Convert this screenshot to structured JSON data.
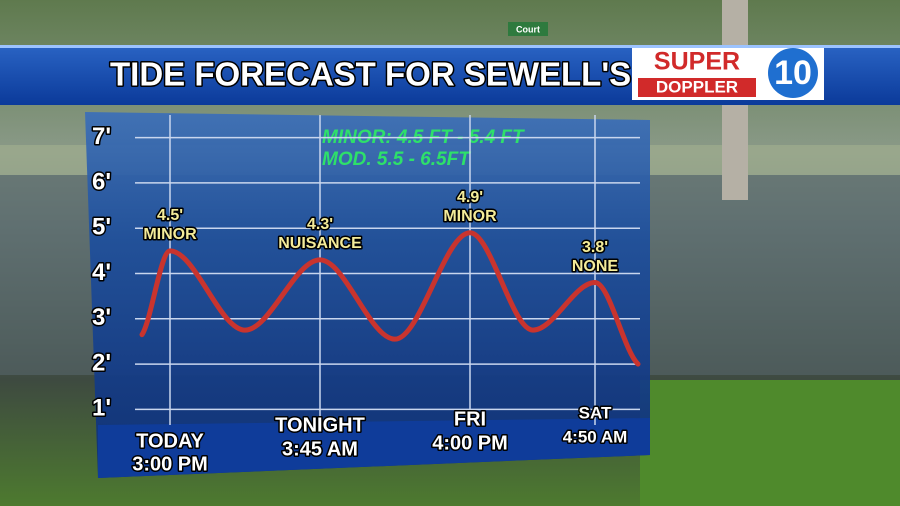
{
  "background_sign": "Court",
  "header": {
    "title": "TIDE FORECAST FOR SEWELL'S PT.",
    "logo": {
      "top": "SUPER",
      "bottom": "DOPPLER",
      "number": "10"
    }
  },
  "chart_data": {
    "type": "line",
    "annotations": [
      "MINOR: 4.5 FT - 5.4 FT",
      "MOD. 5.5 - 6.5FT"
    ],
    "categories": [
      null,
      "TODAY",
      null,
      "TONIGHT",
      null,
      "FRI",
      null,
      "SAT",
      null
    ],
    "times": [
      null,
      "3:00 PM",
      null,
      "3:45 AM",
      null,
      "4:00 PM",
      null,
      "4:50 AM",
      null
    ],
    "series": [
      {
        "name": "Tide",
        "color": "#c9342e",
        "values": [
          2.65,
          4.5,
          2.75,
          4.3,
          2.55,
          4.9,
          2.75,
          3.8,
          2.0
        ],
        "value_labels": [
          null,
          "4.5'",
          null,
          "4.3'",
          null,
          "4.9'",
          null,
          "3.8'",
          null
        ],
        "levels": [
          null,
          "MINOR",
          null,
          "NUISANCE",
          null,
          "MINOR",
          null,
          "NONE",
          null
        ]
      }
    ],
    "ylim": [
      0.5,
      7.5
    ],
    "yticks": [
      {
        "value": 1,
        "label": "1'"
      },
      {
        "value": 2,
        "label": "2'"
      },
      {
        "value": 3,
        "label": "3'"
      },
      {
        "value": 4,
        "label": "4'"
      },
      {
        "value": 5,
        "label": "5'"
      },
      {
        "value": 6,
        "label": "6'"
      },
      {
        "value": 7,
        "label": "7'"
      }
    ],
    "grid": true
  }
}
